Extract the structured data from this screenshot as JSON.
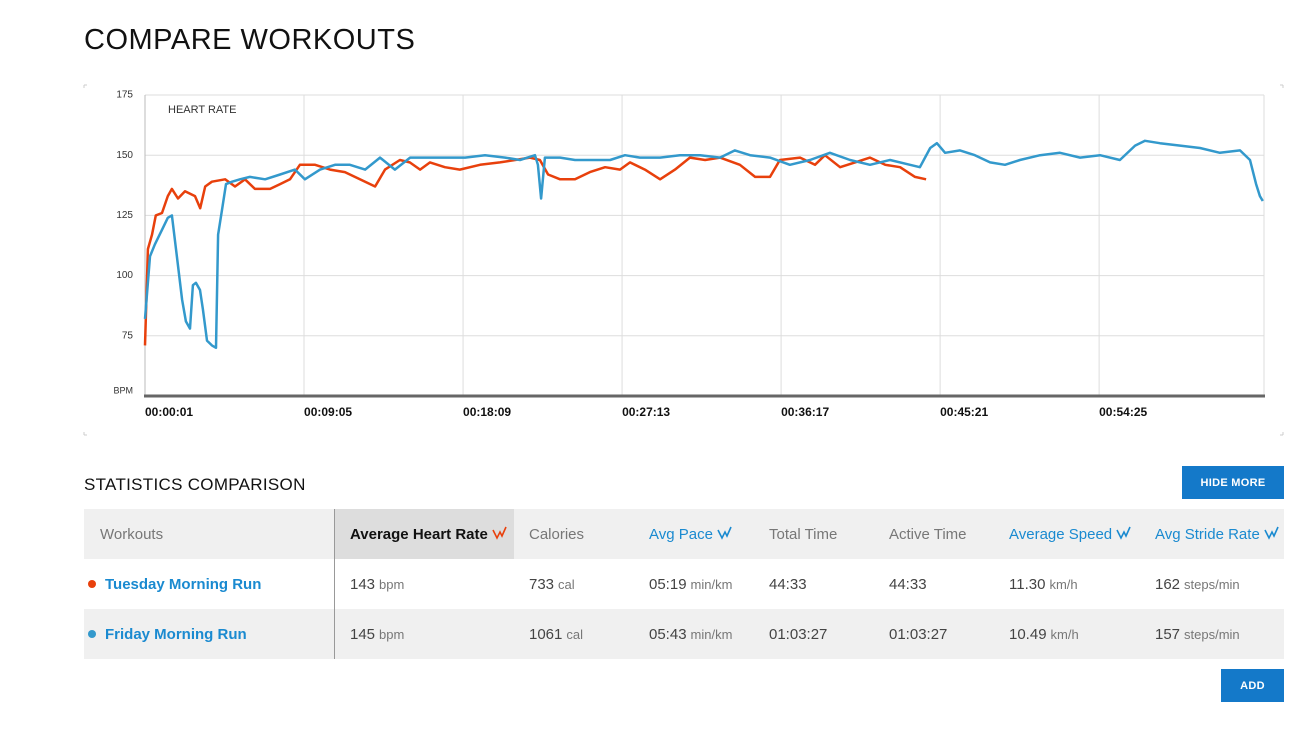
{
  "header": {
    "title": "COMPARE WORKOUTS"
  },
  "chart_data": {
    "type": "line",
    "subtitle": "HEART RATE",
    "y_label": "BPM",
    "xlim": [
      1,
      3829
    ],
    "ylim": [
      50,
      175
    ],
    "xticks": [
      {
        "value": 1,
        "label": "00:00:01"
      },
      {
        "value": 545,
        "label": "00:09:05"
      },
      {
        "value": 1089,
        "label": "00:18:09"
      },
      {
        "value": 1633,
        "label": "00:27:13"
      },
      {
        "value": 2177,
        "label": "00:36:17"
      },
      {
        "value": 2721,
        "label": "00:45:21"
      },
      {
        "value": 3265,
        "label": "00:54:25"
      }
    ],
    "yticks": [
      75,
      100,
      125,
      150,
      175
    ],
    "grid": true,
    "series": [
      {
        "color": "#e8400c",
        "x": [
          1,
          11,
          25,
          38,
          59,
          79,
          93,
          114,
          138,
          172,
          190,
          207,
          230,
          275,
          309,
          343,
          377,
          429,
          463,
          497,
          531,
          583,
          634,
          685,
          736,
          788,
          822,
          873,
          907,
          942,
          976,
          1027,
          1078,
          1147,
          1215,
          1267,
          1318,
          1352,
          1380,
          1421,
          1472,
          1523,
          1575,
          1626,
          1660,
          1711,
          1763,
          1814,
          1865,
          1917,
          1968,
          2036,
          2088,
          2139,
          2173,
          2242,
          2293,
          2327,
          2379,
          2430,
          2481,
          2533,
          2584,
          2635,
          2673
        ],
        "values": [
          71,
          111,
          117,
          125,
          126,
          133,
          136,
          132,
          135,
          133,
          128,
          137,
          139,
          140,
          137,
          140,
          136,
          136,
          138,
          140,
          146,
          146,
          144,
          143,
          140,
          137,
          144,
          148,
          147,
          144,
          147,
          145,
          144,
          146,
          147,
          148,
          149,
          148,
          142,
          140,
          140,
          143,
          145,
          144,
          147,
          144,
          140,
          144,
          149,
          148,
          149,
          146,
          141,
          141,
          148,
          149,
          146,
          150,
          145,
          147,
          149,
          146,
          145,
          141,
          140
        ]
      },
      {
        "color": "#3399cc",
        "x": [
          1,
          18,
          35,
          59,
          79,
          93,
          107,
          128,
          141,
          155,
          165,
          175,
          189,
          199,
          213,
          230,
          244,
          251,
          264,
          278,
          299,
          326,
          360,
          412,
          463,
          514,
          548,
          600,
          651,
          702,
          754,
          805,
          856,
          908,
          959,
          1027,
          1096,
          1164,
          1233,
          1284,
          1335,
          1345,
          1356,
          1369,
          1421,
          1472,
          1540,
          1592,
          1643,
          1694,
          1763,
          1831,
          1900,
          1968,
          2019,
          2071,
          2139,
          2207,
          2276,
          2344,
          2413,
          2481,
          2550,
          2618,
          2652,
          2687,
          2710,
          2738,
          2789,
          2840,
          2892,
          2943,
          2994,
          3063,
          3131,
          3200,
          3268,
          3336,
          3388,
          3422,
          3473,
          3542,
          3610,
          3678,
          3747,
          3781,
          3802,
          3815,
          3825
        ],
        "values": [
          82,
          108,
          113,
          119,
          124,
          125,
          111,
          90,
          81,
          78,
          96,
          97,
          94,
          86,
          73,
          71,
          70,
          117,
          127,
          138,
          139,
          140,
          141,
          140,
          142,
          144,
          140,
          144,
          146,
          146,
          144,
          149,
          144,
          149,
          149,
          149,
          149,
          150,
          149,
          148,
          150,
          146,
          132,
          149,
          149,
          148,
          148,
          148,
          150,
          149,
          149,
          150,
          150,
          149,
          152,
          150,
          149,
          146,
          148,
          151,
          148,
          146,
          148,
          146,
          145,
          153,
          155,
          151,
          152,
          150,
          147,
          146,
          148,
          150,
          151,
          149,
          150,
          148,
          154,
          156,
          155,
          154,
          153,
          151,
          152,
          148,
          138,
          133,
          131
        ]
      }
    ]
  },
  "stats": {
    "title": "STATISTICS COMPARISON",
    "hide_button": "HIDE MORE",
    "add_button": "ADD"
  },
  "table": {
    "columns": [
      {
        "label": "Workouts",
        "active": false,
        "linked": false
      },
      {
        "label": "Average Heart Rate",
        "active": true,
        "linked": true
      },
      {
        "label": "Calories",
        "active": false,
        "linked": false
      },
      {
        "label": "Avg Pace",
        "active": false,
        "linked": true
      },
      {
        "label": "Total Time",
        "active": false,
        "linked": false
      },
      {
        "label": "Active Time",
        "active": false,
        "linked": false
      },
      {
        "label": "Average Speed",
        "active": false,
        "linked": true
      },
      {
        "label": "Avg Stride Rate",
        "active": false,
        "linked": true
      }
    ],
    "rows": [
      {
        "name": "Tuesday Morning Run",
        "color": "#e8400c",
        "cells": [
          {
            "value": "143",
            "unit": "bpm"
          },
          {
            "value": "733",
            "unit": "cal"
          },
          {
            "value": "05:19",
            "unit": "min/km"
          },
          {
            "value": "44:33"
          },
          {
            "value": "44:33"
          },
          {
            "value": "11.30",
            "unit": "km/h"
          },
          {
            "value": "162",
            "unit": "steps/min"
          }
        ]
      },
      {
        "name": "Friday Morning Run",
        "color": "#3399cc",
        "cells": [
          {
            "value": "145",
            "unit": "bpm"
          },
          {
            "value": "1061",
            "unit": "cal"
          },
          {
            "value": "05:43",
            "unit": "min/km"
          },
          {
            "value": "01:03:27"
          },
          {
            "value": "01:03:27"
          },
          {
            "value": "10.49",
            "unit": "km/h"
          },
          {
            "value": "157",
            "unit": "steps/min"
          }
        ]
      }
    ]
  }
}
